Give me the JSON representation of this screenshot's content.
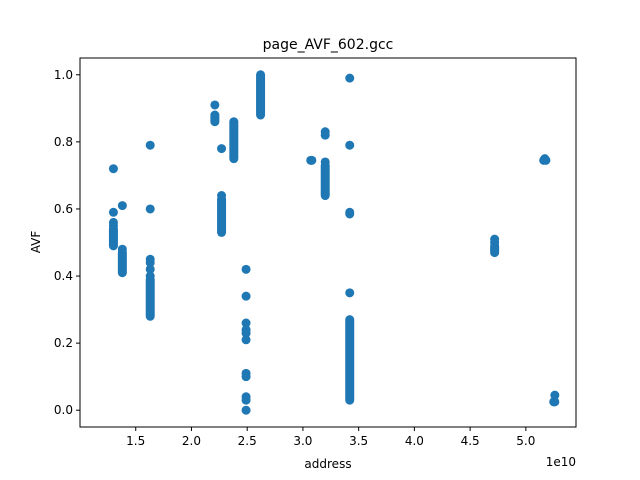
{
  "chart_data": {
    "type": "scatter",
    "title": "page_AVF_602.gcc",
    "xlabel": "address",
    "ylabel": "AVF",
    "x_offset_label": "1e10",
    "x_unit_scale": 10000000000,
    "xlim": [
      1.0,
      5.45
    ],
    "ylim": [
      -0.05,
      1.05
    ],
    "xticks": [
      1.5,
      2.0,
      2.5,
      3.0,
      3.5,
      4.0,
      4.5,
      5.0
    ],
    "xtick_labels": [
      "1.5",
      "2.0",
      "2.5",
      "3.0",
      "3.5",
      "4.0",
      "4.5",
      "5.0"
    ],
    "yticks": [
      0.0,
      0.2,
      0.4,
      0.6,
      0.8,
      1.0
    ],
    "ytick_labels": [
      "0.0",
      "0.2",
      "0.4",
      "0.6",
      "0.8",
      "1.0"
    ],
    "grid": false,
    "legend": "none",
    "marker_color": "#1f77b4",
    "columns": [
      {
        "x": 1.3,
        "y_min": 0.49,
        "y_max": 0.54
      },
      {
        "x": 1.38,
        "y_min": 0.41,
        "y_max": 0.47
      },
      {
        "x": 1.63,
        "y_min": 0.28,
        "y_max": 0.39
      },
      {
        "x": 2.21,
        "y_min": 0.86,
        "y_max": 0.88
      },
      {
        "x": 2.27,
        "y_min": 0.53,
        "y_max": 0.63
      },
      {
        "x": 2.38,
        "y_min": 0.75,
        "y_max": 0.86
      },
      {
        "x": 2.62,
        "y_min": 0.88,
        "y_max": 1.0
      },
      {
        "x": 3.2,
        "y_min": 0.64,
        "y_max": 0.73
      },
      {
        "x": 3.42,
        "y_min": 0.03,
        "y_max": 0.27
      },
      {
        "x": 4.72,
        "y_min": 0.47,
        "y_max": 0.49
      }
    ],
    "points": [
      {
        "x": 1.3,
        "y": 0.72
      },
      {
        "x": 1.3,
        "y": 0.59
      },
      {
        "x": 1.3,
        "y": 0.56
      },
      {
        "x": 1.3,
        "y": 0.55
      },
      {
        "x": 1.38,
        "y": 0.61
      },
      {
        "x": 1.38,
        "y": 0.48
      },
      {
        "x": 1.63,
        "y": 0.79
      },
      {
        "x": 1.63,
        "y": 0.6
      },
      {
        "x": 1.63,
        "y": 0.45
      },
      {
        "x": 1.63,
        "y": 0.44
      },
      {
        "x": 1.63,
        "y": 0.42
      },
      {
        "x": 1.63,
        "y": 0.4
      },
      {
        "x": 2.21,
        "y": 0.91
      },
      {
        "x": 2.27,
        "y": 0.78
      },
      {
        "x": 2.27,
        "y": 0.64
      },
      {
        "x": 2.49,
        "y": 0.42
      },
      {
        "x": 2.49,
        "y": 0.34
      },
      {
        "x": 2.49,
        "y": 0.26
      },
      {
        "x": 2.49,
        "y": 0.24
      },
      {
        "x": 2.49,
        "y": 0.23
      },
      {
        "x": 2.49,
        "y": 0.21
      },
      {
        "x": 2.49,
        "y": 0.11
      },
      {
        "x": 2.49,
        "y": 0.1
      },
      {
        "x": 2.49,
        "y": 0.04
      },
      {
        "x": 2.49,
        "y": 0.03
      },
      {
        "x": 2.49,
        "y": 0.0
      },
      {
        "x": 3.07,
        "y": 0.745
      },
      {
        "x": 3.08,
        "y": 0.745
      },
      {
        "x": 3.2,
        "y": 0.83
      },
      {
        "x": 3.2,
        "y": 0.82
      },
      {
        "x": 3.2,
        "y": 0.74
      },
      {
        "x": 3.42,
        "y": 0.99
      },
      {
        "x": 3.42,
        "y": 0.79
      },
      {
        "x": 3.42,
        "y": 0.59
      },
      {
        "x": 3.42,
        "y": 0.585
      },
      {
        "x": 3.42,
        "y": 0.35
      },
      {
        "x": 4.72,
        "y": 0.51
      },
      {
        "x": 4.72,
        "y": 0.5
      },
      {
        "x": 5.17,
        "y": 0.75
      },
      {
        "x": 5.18,
        "y": 0.745
      },
      {
        "x": 5.16,
        "y": 0.745
      },
      {
        "x": 5.26,
        "y": 0.045
      },
      {
        "x": 5.26,
        "y": 0.025
      },
      {
        "x": 5.25,
        "y": 0.025
      }
    ]
  }
}
